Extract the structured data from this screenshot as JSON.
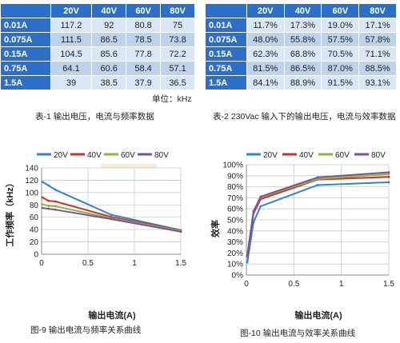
{
  "table1": {
    "corner": "",
    "columns": [
      "20V",
      "40V",
      "60V",
      "80V"
    ],
    "rows": [
      {
        "label": "0.01A",
        "values": [
          "117.2",
          "92",
          "80.8",
          "75"
        ]
      },
      {
        "label": "0.075A",
        "values": [
          "111.5",
          "86.5",
          "78.5",
          "73.8"
        ]
      },
      {
        "label": "0.15A",
        "values": [
          "104.5",
          "85.6",
          "77.8",
          "72.2"
        ]
      },
      {
        "label": "0.75A",
        "values": [
          "64.1",
          "60.6",
          "58.4",
          "57.1"
        ]
      },
      {
        "label": "1.5A",
        "values": [
          "39",
          "38.5",
          "37.9",
          "36.5"
        ]
      }
    ],
    "unit_note": "单位：kHz",
    "caption": "表-1 输出电压，电流与频率数据"
  },
  "table2": {
    "corner": "",
    "columns": [
      "20V",
      "40V",
      "60V",
      "80V"
    ],
    "rows": [
      {
        "label": "0.01A",
        "values": [
          "11.7%",
          "17.3%",
          "19.0%",
          "17.1%"
        ]
      },
      {
        "label": "0.075A",
        "values": [
          "48.0%",
          "55.8%",
          "57.5%",
          "57.8%"
        ]
      },
      {
        "label": "0.15A",
        "values": [
          "62.3%",
          "68.8%",
          "70.5%",
          "71.1%"
        ]
      },
      {
        "label": "0.75A",
        "values": [
          "81.5%",
          "86.5%",
          "87.0%",
          "88.5%"
        ]
      },
      {
        "label": "1.5A",
        "values": [
          "84.1%",
          "88.9%",
          "91.5%",
          "93.1%"
        ]
      }
    ],
    "caption": "表-2 230Vac 输入下的输出电压，电流与效率数据"
  },
  "colors": {
    "header_bg": "#2b6fc8",
    "cell_light": "#d9e6f5",
    "cell_dark": "#bdd3ec",
    "series": [
      "#2e86c8",
      "#c8302e",
      "#8cb63c",
      "#7a4fa0"
    ]
  },
  "chart_data": [
    {
      "type": "line",
      "title": "",
      "caption": "图-9 输出电流与频率关系曲线",
      "xlabel": "输出电流(A)",
      "ylabel": "工作频率（kHz）",
      "xlim": [
        0,
        1.5
      ],
      "ylim": [
        0,
        140
      ],
      "xticks": [
        0,
        0.5,
        1,
        1.5
      ],
      "xtick_labels": [
        "0",
        "0.5",
        "1",
        "1.5"
      ],
      "yticks": [
        0,
        20,
        40,
        60,
        80,
        100,
        120,
        140
      ],
      "ytick_labels": [
        "0",
        "20",
        "40",
        "60",
        "80",
        "100",
        "120",
        "140"
      ],
      "grid": true,
      "legend": "top",
      "series": [
        {
          "name": "20V",
          "x": [
            0.01,
            0.075,
            0.15,
            0.75,
            1.5
          ],
          "y": [
            117.2,
            111.5,
            104.5,
            64.1,
            39
          ]
        },
        {
          "name": "40V",
          "x": [
            0.01,
            0.075,
            0.15,
            0.75,
            1.5
          ],
          "y": [
            92,
            86.5,
            85.6,
            60.6,
            38.5
          ]
        },
        {
          "name": "60V",
          "x": [
            0.01,
            0.075,
            0.15,
            0.75,
            1.5
          ],
          "y": [
            80.8,
            78.5,
            77.8,
            58.4,
            37.9
          ]
        },
        {
          "name": "80V",
          "x": [
            0.01,
            0.075,
            0.15,
            0.75,
            1.5
          ],
          "y": [
            75,
            73.8,
            72.2,
            57.1,
            36.5
          ]
        }
      ]
    },
    {
      "type": "line",
      "title": "",
      "caption": "图-10 输出电流与效率关系曲线",
      "xlabel": "输出电流(A)",
      "ylabel": "效率",
      "xlim": [
        0,
        1.5
      ],
      "ylim": [
        0,
        100
      ],
      "xticks": [
        0,
        0.5,
        1,
        1.5
      ],
      "xtick_labels": [
        "0",
        "0.5",
        "1",
        "1.5"
      ],
      "yticks": [
        0,
        10,
        20,
        30,
        40,
        50,
        60,
        70,
        80,
        90,
        100
      ],
      "ytick_labels": [
        "0%",
        "10%",
        "20%",
        "30%",
        "40%",
        "50%",
        "60%",
        "70%",
        "80%",
        "90%",
        "100%"
      ],
      "grid": true,
      "legend": "top",
      "series": [
        {
          "name": "20V",
          "x": [
            0.01,
            0.075,
            0.15,
            0.75,
            1.5
          ],
          "y": [
            11.7,
            48.0,
            62.3,
            81.5,
            84.1
          ]
        },
        {
          "name": "40V",
          "x": [
            0.01,
            0.075,
            0.15,
            0.75,
            1.5
          ],
          "y": [
            17.3,
            55.8,
            68.8,
            86.5,
            88.9
          ]
        },
        {
          "name": "60V",
          "x": [
            0.01,
            0.075,
            0.15,
            0.75,
            1.5
          ],
          "y": [
            19.0,
            57.5,
            70.5,
            87.0,
            91.5
          ]
        },
        {
          "name": "80V",
          "x": [
            0.01,
            0.075,
            0.15,
            0.75,
            1.5
          ],
          "y": [
            17.1,
            57.8,
            71.1,
            88.5,
            93.1
          ]
        }
      ]
    }
  ]
}
